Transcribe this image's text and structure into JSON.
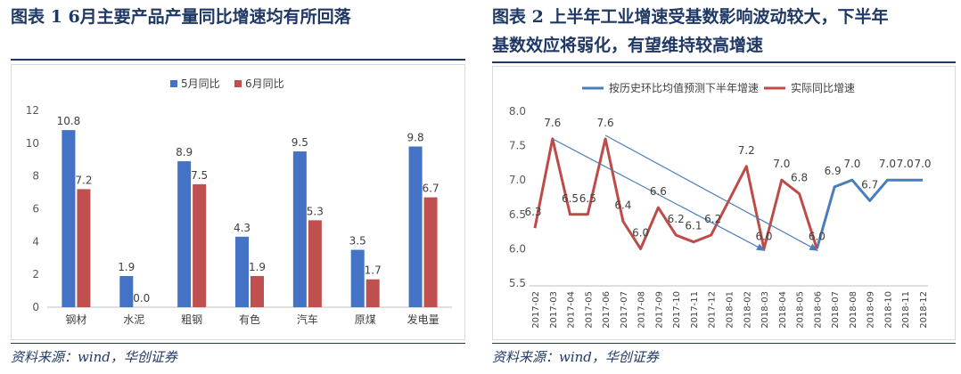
{
  "left": {
    "title": "图表 1   6月主要产品产量同比增速均有所回落",
    "source": "资料来源：wind，华创证券"
  },
  "right": {
    "title_line1": "图表 2   上半年工业增速受基数影响波动较大，下半年",
    "title_line2": "基数效应将弱化，有望维持较高增速",
    "source": "资料来源：wind，华创证券"
  },
  "chart_data": [
    {
      "type": "bar",
      "categories": [
        "钢材",
        "水泥",
        "粗钢",
        "有色",
        "汽车",
        "原煤",
        "发电量"
      ],
      "series": [
        {
          "name": "5月同比",
          "values": [
            10.8,
            1.9,
            8.9,
            4.3,
            9.5,
            3.5,
            9.8
          ],
          "color": "#4472c4"
        },
        {
          "name": "6月同比",
          "values": [
            7.2,
            0.0,
            7.5,
            1.9,
            5.3,
            1.7,
            6.7
          ],
          "color": "#c0504d"
        }
      ],
      "y_ticks": [
        "0",
        "2",
        "4",
        "6",
        "8",
        "10",
        "12"
      ],
      "ylim": [
        0,
        12
      ],
      "legend": "top",
      "grid": false
    },
    {
      "type": "line",
      "x": [
        "2017-02",
        "2017-03",
        "2017-04",
        "2017-05",
        "2017-06",
        "2017-07",
        "2017-08",
        "2017-09",
        "2017-10",
        "2017-11",
        "2017-12",
        "2018-01",
        "2018-02",
        "2018-03",
        "2018-04",
        "2018-05",
        "2018-06",
        "2018-07",
        "2018-08",
        "2018-09",
        "2018-10",
        "2018-11",
        "2018-12"
      ],
      "series": [
        {
          "name": "按历史环比均值预测下半年增速",
          "color": "#4a7ebb",
          "values": [
            null,
            null,
            null,
            null,
            null,
            null,
            null,
            null,
            null,
            null,
            null,
            null,
            null,
            null,
            null,
            null,
            6.0,
            6.9,
            7.0,
            6.7,
            7.0,
            7.0,
            7.0
          ]
        },
        {
          "name": "实际同比增速",
          "color": "#be4b48",
          "values": [
            6.3,
            7.6,
            6.5,
            6.5,
            7.6,
            6.4,
            6.0,
            6.6,
            6.2,
            6.1,
            6.2,
            6.7,
            7.2,
            6.0,
            7.0,
            6.8,
            6.0,
            null,
            null,
            null,
            null,
            null,
            null
          ]
        }
      ],
      "labels": [
        {
          "x": "2017-02",
          "text": "6.3"
        },
        {
          "x": "2017-03",
          "text": "7.6"
        },
        {
          "x": "2017-04",
          "text": "6.5"
        },
        {
          "x": "2017-05",
          "text": "6.5"
        },
        {
          "x": "2017-06",
          "text": "7.6"
        },
        {
          "x": "2017-07",
          "text": "6.4"
        },
        {
          "x": "2017-08",
          "text": "6.0"
        },
        {
          "x": "2017-09",
          "text": "6.6"
        },
        {
          "x": "2017-10",
          "text": "6.2"
        },
        {
          "x": "2017-11",
          "text": "6.1"
        },
        {
          "x": "2017-12",
          "text": "6.2"
        },
        {
          "x": "2018-02",
          "text": "7.2"
        },
        {
          "x": "2018-03",
          "text": "6.0"
        },
        {
          "x": "2018-04",
          "text": "7.0"
        },
        {
          "x": "2018-05",
          "text": "6.8"
        },
        {
          "x": "2018-06",
          "text": "6.0"
        },
        {
          "x": "2018-07",
          "text": "6.9"
        },
        {
          "x": "2018-08",
          "text": "7.0"
        },
        {
          "x": "2018-09",
          "text": "6.7"
        },
        {
          "x": "2018-10",
          "text": "7.0"
        },
        {
          "x": "2018-11",
          "text": "7.0"
        },
        {
          "x": "2018-12",
          "text": "7.0"
        }
      ],
      "arrows": [
        {
          "from": [
            "2017-03",
            7.6
          ],
          "to": [
            "2018-03",
            5.98
          ]
        },
        {
          "from": [
            "2017-06",
            7.65
          ],
          "to": [
            "2018-06",
            5.98
          ]
        }
      ],
      "y_ticks": [
        "5.5",
        "6.0",
        "6.5",
        "7.0",
        "7.5",
        "8.0"
      ],
      "ylim": [
        5.5,
        8.0
      ],
      "legend": "top",
      "grid": false
    }
  ]
}
